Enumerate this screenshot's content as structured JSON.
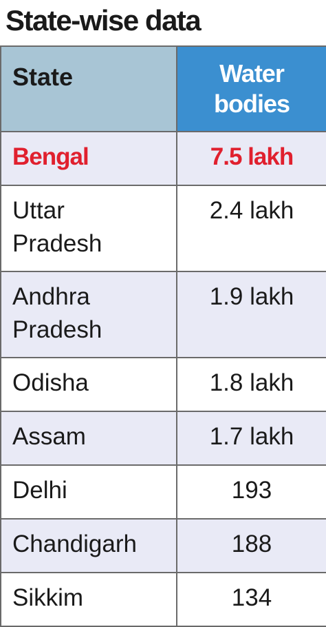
{
  "title": "State-wise data",
  "table": {
    "header": [
      "State",
      "Water bodies"
    ],
    "rows": [
      [
        "Bengal",
        "7.5 lakh"
      ],
      [
        "Uttar Pradesh",
        "2.4 lakh"
      ],
      [
        "Andhra Pradesh",
        "1.9 lakh"
      ],
      [
        "Odisha",
        "1.8 lakh"
      ],
      [
        "Assam",
        "1.7 lakh"
      ],
      [
        "Delhi",
        "193"
      ],
      [
        "Chandigarh",
        "188"
      ],
      [
        "Sikkim",
        "134"
      ]
    ]
  }
}
